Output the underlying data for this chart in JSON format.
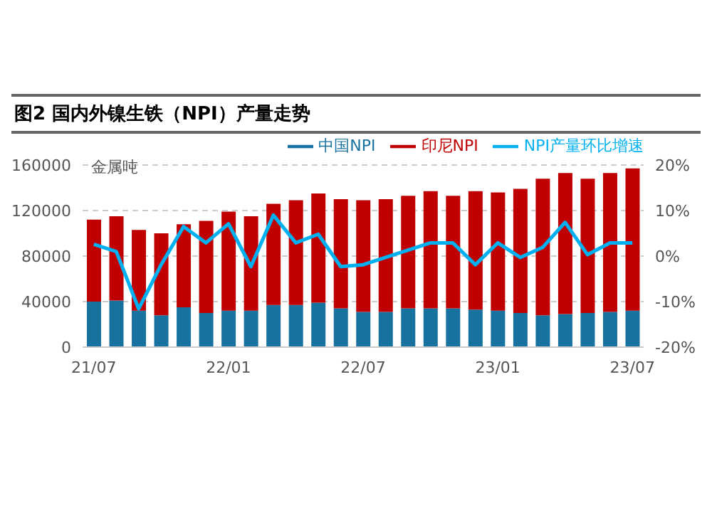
{
  "chart_data": {
    "type": "bar",
    "title": "图2 国内外镍生铁（NPI）产量走势",
    "ylabel": "金属吨",
    "categories": [
      "21/07",
      null,
      null,
      null,
      null,
      null,
      "22/01",
      null,
      null,
      null,
      null,
      null,
      "22/07",
      null,
      null,
      null,
      null,
      null,
      "23/01",
      null,
      null,
      null,
      null,
      null,
      "23/07"
    ],
    "stacked": true,
    "series": [
      {
        "name": "中国NPI",
        "color": "#17729f",
        "values": [
          40000,
          41000,
          32000,
          28000,
          35000,
          30000,
          32000,
          32000,
          37000,
          37000,
          39000,
          34000,
          31000,
          31000,
          34000,
          34000,
          34000,
          33000,
          32000,
          30000,
          28000,
          29000,
          30000,
          31000,
          32000
        ]
      },
      {
        "name": "印尼NPI",
        "color": "#c00000",
        "values": [
          72000,
          74000,
          71000,
          72000,
          73000,
          81000,
          87000,
          83000,
          89000,
          92000,
          96000,
          96000,
          98000,
          99000,
          99000,
          103000,
          99000,
          104000,
          104000,
          109000,
          120000,
          124000,
          118000,
          122000,
          125000
        ]
      },
      {
        "name": "NPI产量环比增速",
        "type": "line",
        "axis": "y2",
        "color": "#00b0f0",
        "values": [
          2.6,
          1.0,
          -11.6,
          -1.9,
          6.5,
          2.9,
          7.1,
          -2.3,
          9.0,
          2.9,
          4.8,
          -2.3,
          -1.9,
          -0.3,
          1.3,
          2.9,
          2.9,
          -1.9,
          2.9,
          -0.3,
          1.9,
          7.4,
          0.3,
          2.9,
          2.9
        ]
      }
    ],
    "ylim": [
      0,
      160000
    ],
    "yticks": [
      0,
      40000,
      80000,
      120000,
      160000
    ],
    "y2lim": [
      -20,
      20
    ],
    "y2ticks": [
      {
        "value": -20,
        "label": "-20%"
      },
      {
        "value": -10,
        "label": "-10%"
      },
      {
        "value": 0,
        "label": "0%"
      },
      {
        "value": 10,
        "label": "10%"
      },
      {
        "value": 20,
        "label": "20%"
      }
    ],
    "grid": "y",
    "legend": "top",
    "marker": "none",
    "line_style": "solid"
  }
}
